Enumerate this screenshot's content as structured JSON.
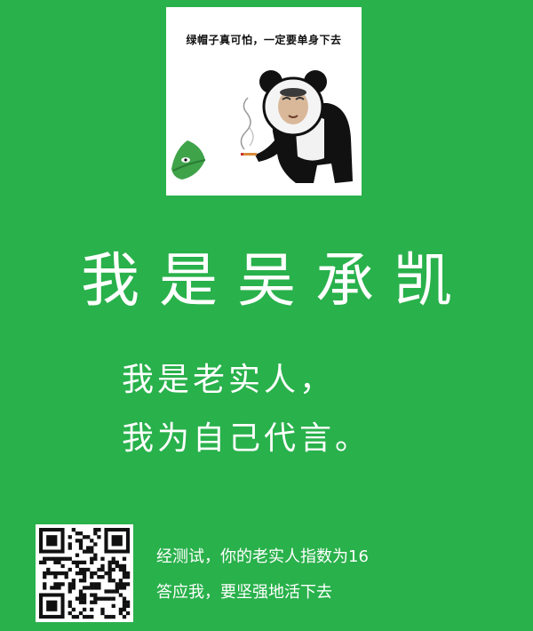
{
  "meme": {
    "caption": "绿帽子真可怕，一定要单身下去",
    "figure_icon": "panda-man-smoking-icon",
    "hat_icon": "green-hat-icon"
  },
  "title": "我是吴承凯",
  "subtitle_lines": [
    "我是老实人，",
    "我为自己代言。"
  ],
  "qr_icon": "qr-code-icon",
  "result_lines": [
    "经测试，你的老实人指数为16",
    "答应我，要坚强地活下去"
  ],
  "colors": {
    "background": "#29b14b",
    "text": "#ffffff"
  }
}
